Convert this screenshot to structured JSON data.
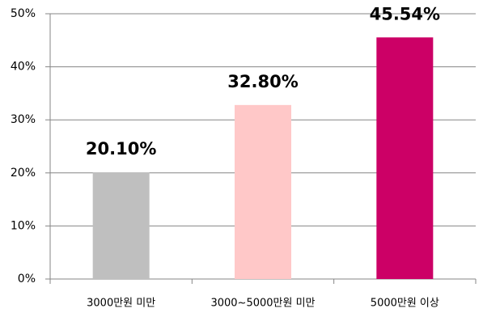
{
  "chart_data": {
    "type": "bar",
    "categories": [
      "3000만원 미만",
      "3000~5000만원 미만",
      "5000만원 이상"
    ],
    "values": [
      20.1,
      32.8,
      45.54
    ],
    "value_labels": [
      "20.10%",
      "32.80%",
      "45.54%"
    ],
    "colors": [
      "#bfbfbf",
      "#ffc8c8",
      "#cc0066"
    ],
    "ylim": [
      0,
      50
    ],
    "yticks": [
      {
        "value": 0,
        "label": "0%"
      },
      {
        "value": 10,
        "label": "10%"
      },
      {
        "value": 20,
        "label": "20%"
      },
      {
        "value": 30,
        "label": "30%"
      },
      {
        "value": 40,
        "label": "40%"
      },
      {
        "value": 50,
        "label": "50%"
      }
    ],
    "grid": true
  }
}
